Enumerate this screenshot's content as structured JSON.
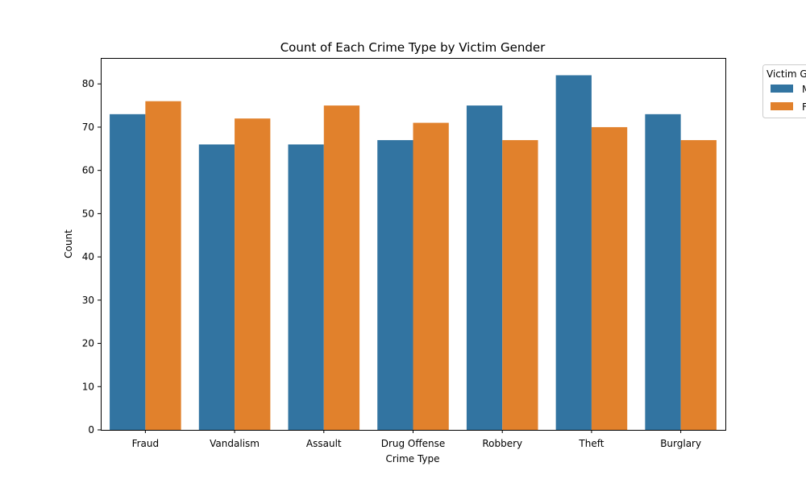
{
  "chart_data": {
    "type": "bar",
    "title": "Count of Each Crime Type by Victim Gender",
    "xlabel": "Crime Type",
    "ylabel": "Count",
    "categories": [
      "Fraud",
      "Vandalism",
      "Assault",
      "Drug Offense",
      "Robbery",
      "Theft",
      "Burglary"
    ],
    "series": [
      {
        "name": "Male",
        "color": "#3274a1",
        "values": [
          73,
          66,
          66,
          67,
          75,
          82,
          73
        ]
      },
      {
        "name": "Female",
        "color": "#e1812c",
        "values": [
          76,
          72,
          75,
          71,
          67,
          70,
          67
        ]
      }
    ],
    "ylim": [
      0,
      86
    ],
    "yticks": [
      0,
      10,
      20,
      30,
      40,
      50,
      60,
      70,
      80
    ],
    "grid": false,
    "legend": {
      "title": "Victim Gender",
      "placement": "upper right, outside plot area (clipped)"
    }
  }
}
